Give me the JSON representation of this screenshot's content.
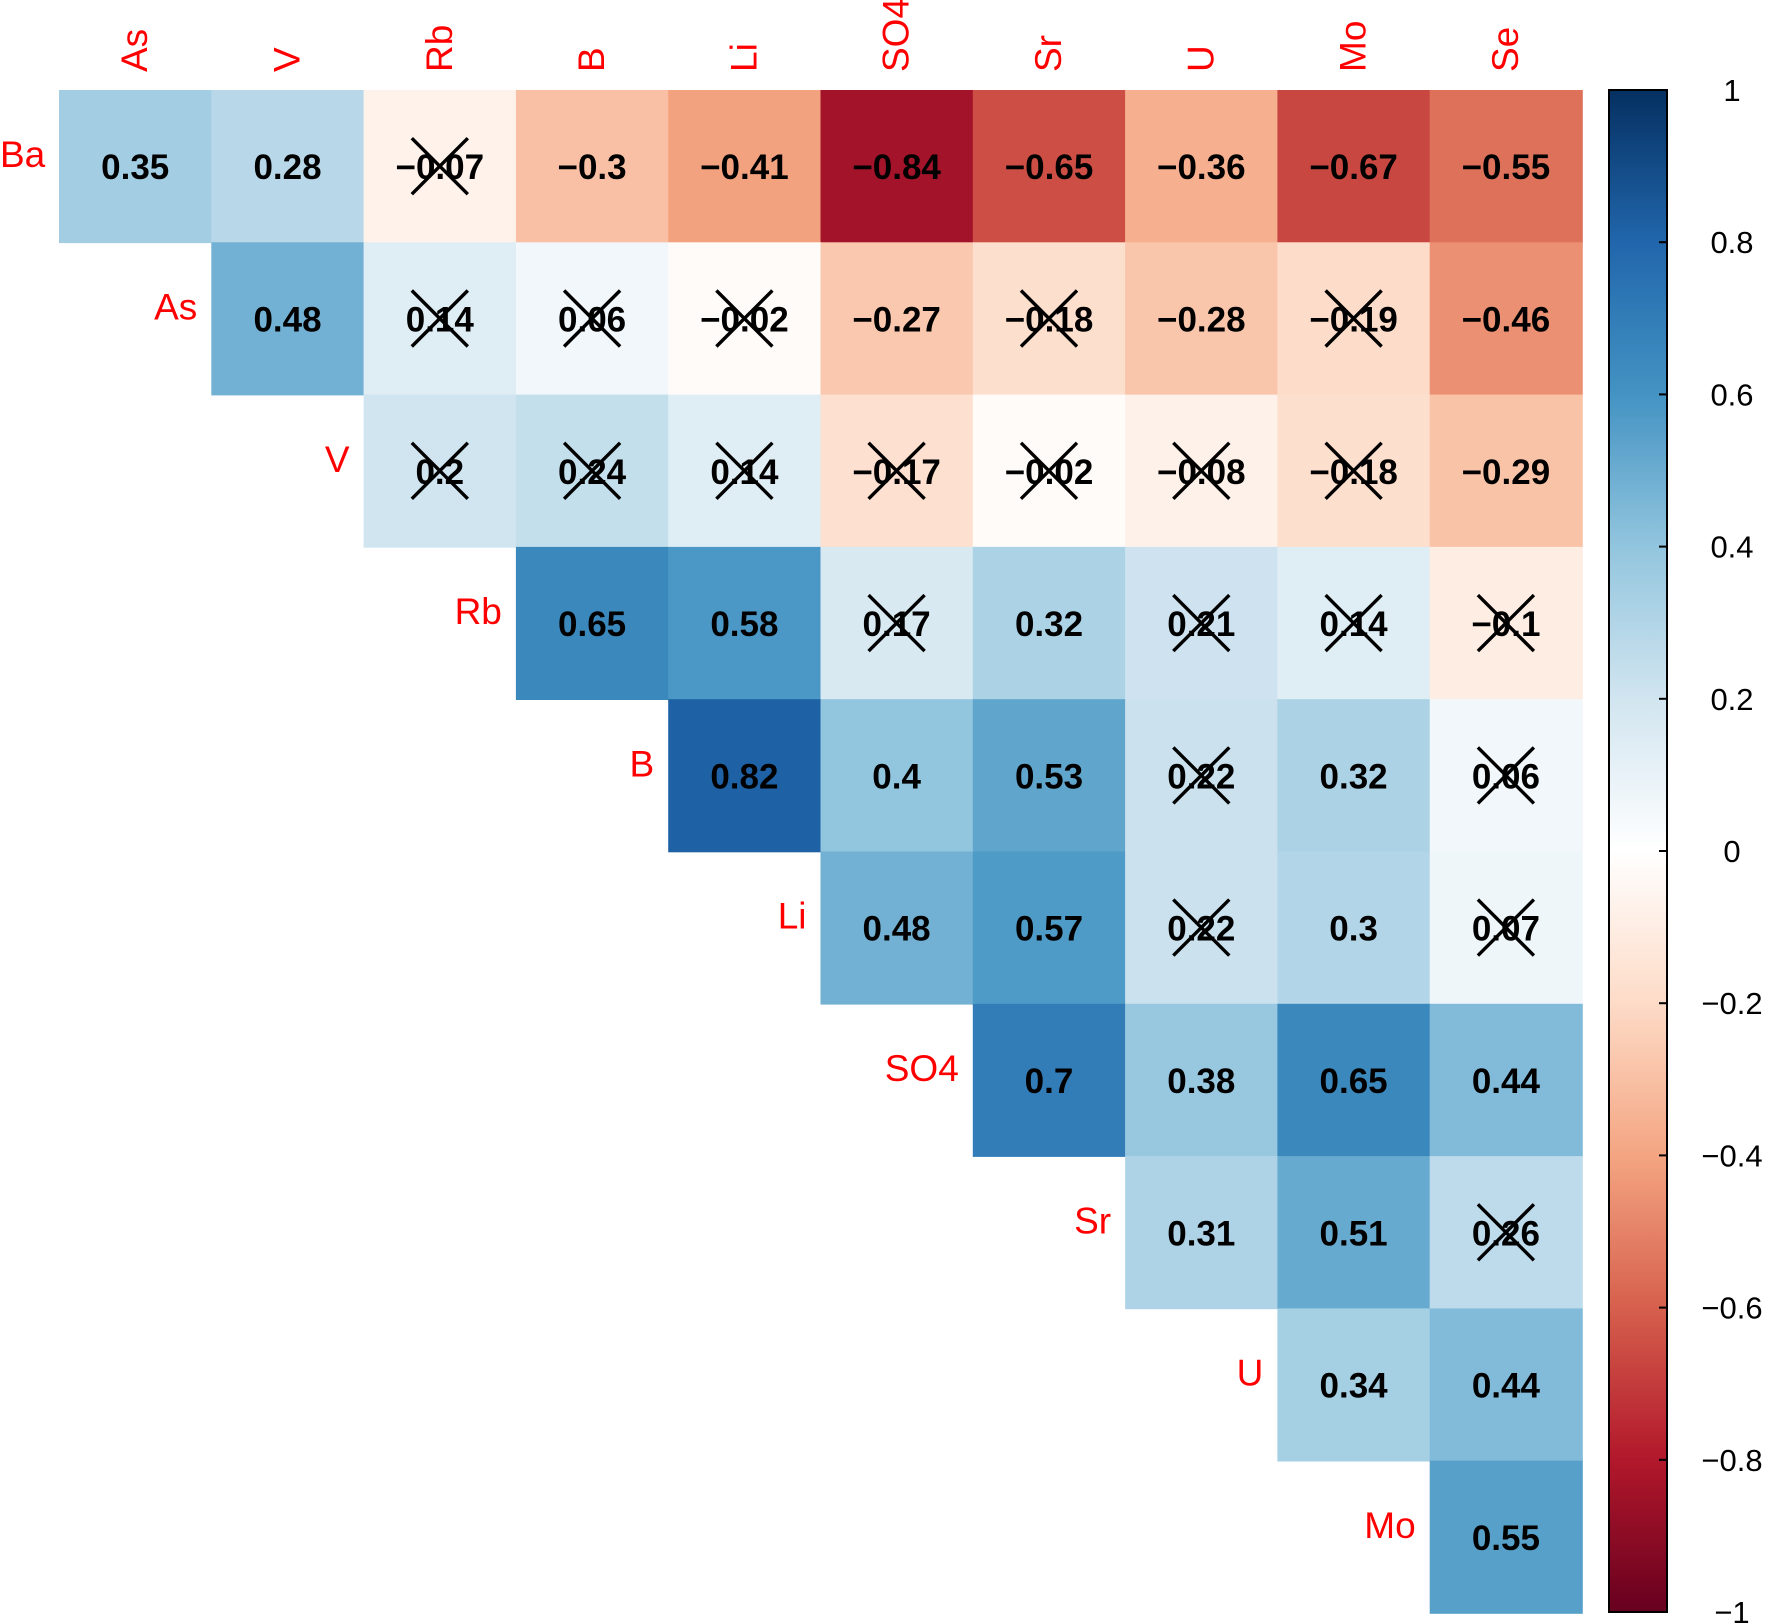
{
  "chart_data": {
    "type": "heatmap",
    "subtype": "correlation-matrix-upper-triangle",
    "row_labels": [
      "Ba",
      "As",
      "V",
      "Rb",
      "B",
      "Li",
      "SO4",
      "Sr",
      "U",
      "Mo"
    ],
    "col_labels": [
      "As",
      "V",
      "Rb",
      "B",
      "Li",
      "SO4",
      "Sr",
      "U",
      "Mo",
      "Se"
    ],
    "cells": [
      [
        {
          "label": "0.35",
          "value": 0.35,
          "crossed": false
        },
        {
          "label": "0.28",
          "value": 0.28,
          "crossed": false
        },
        {
          "label": "−0.07",
          "value": -0.07,
          "crossed": true
        },
        {
          "label": "−0.3",
          "value": -0.3,
          "crossed": false
        },
        {
          "label": "−0.41",
          "value": -0.41,
          "crossed": false
        },
        {
          "label": "−0.84",
          "value": -0.84,
          "crossed": false
        },
        {
          "label": "−0.65",
          "value": -0.65,
          "crossed": false
        },
        {
          "label": "−0.36",
          "value": -0.36,
          "crossed": false
        },
        {
          "label": "−0.67",
          "value": -0.67,
          "crossed": false
        },
        {
          "label": "−0.55",
          "value": -0.55,
          "crossed": false
        }
      ],
      [
        null,
        {
          "label": "0.48",
          "value": 0.48,
          "crossed": false
        },
        {
          "label": "0.14",
          "value": 0.14,
          "crossed": true
        },
        {
          "label": "0.06",
          "value": 0.06,
          "crossed": true
        },
        {
          "label": "−0.02",
          "value": -0.02,
          "crossed": true
        },
        {
          "label": "−0.27",
          "value": -0.27,
          "crossed": false
        },
        {
          "label": "−0.18",
          "value": -0.18,
          "crossed": true
        },
        {
          "label": "−0.28",
          "value": -0.28,
          "crossed": false
        },
        {
          "label": "−0.19",
          "value": -0.19,
          "crossed": true
        },
        {
          "label": "−0.46",
          "value": -0.46,
          "crossed": false
        }
      ],
      [
        null,
        null,
        {
          "label": "0.2",
          "value": 0.2,
          "crossed": true
        },
        {
          "label": "0.24",
          "value": 0.24,
          "crossed": true
        },
        {
          "label": "0.14",
          "value": 0.14,
          "crossed": true
        },
        {
          "label": "−0.17",
          "value": -0.17,
          "crossed": true
        },
        {
          "label": "−0.02",
          "value": -0.02,
          "crossed": true
        },
        {
          "label": "−0.08",
          "value": -0.08,
          "crossed": true
        },
        {
          "label": "−0.18",
          "value": -0.18,
          "crossed": true
        },
        {
          "label": "−0.29",
          "value": -0.29,
          "crossed": false
        }
      ],
      [
        null,
        null,
        null,
        {
          "label": "0.65",
          "value": 0.65,
          "crossed": false
        },
        {
          "label": "0.58",
          "value": 0.58,
          "crossed": false
        },
        {
          "label": "0.17",
          "value": 0.17,
          "crossed": true
        },
        {
          "label": "0.32",
          "value": 0.32,
          "crossed": false
        },
        {
          "label": "0.21",
          "value": 0.21,
          "crossed": true
        },
        {
          "label": "0.14",
          "value": 0.14,
          "crossed": true
        },
        {
          "label": "−0.1",
          "value": -0.1,
          "crossed": true
        }
      ],
      [
        null,
        null,
        null,
        null,
        {
          "label": "0.82",
          "value": 0.82,
          "crossed": false
        },
        {
          "label": "0.4",
          "value": 0.4,
          "crossed": false
        },
        {
          "label": "0.53",
          "value": 0.53,
          "crossed": false
        },
        {
          "label": "0.22",
          "value": 0.22,
          "crossed": true
        },
        {
          "label": "0.32",
          "value": 0.32,
          "crossed": false
        },
        {
          "label": "0.06",
          "value": 0.06,
          "crossed": true
        }
      ],
      [
        null,
        null,
        null,
        null,
        null,
        {
          "label": "0.48",
          "value": 0.48,
          "crossed": false
        },
        {
          "label": "0.57",
          "value": 0.57,
          "crossed": false
        },
        {
          "label": "0.22",
          "value": 0.22,
          "crossed": true
        },
        {
          "label": "0.3",
          "value": 0.3,
          "crossed": false
        },
        {
          "label": "0.07",
          "value": 0.07,
          "crossed": true
        }
      ],
      [
        null,
        null,
        null,
        null,
        null,
        null,
        {
          "label": "0.7",
          "value": 0.7,
          "crossed": false
        },
        {
          "label": "0.38",
          "value": 0.38,
          "crossed": false
        },
        {
          "label": "0.65",
          "value": 0.65,
          "crossed": false
        },
        {
          "label": "0.44",
          "value": 0.44,
          "crossed": false
        }
      ],
      [
        null,
        null,
        null,
        null,
        null,
        null,
        null,
        {
          "label": "0.31",
          "value": 0.31,
          "crossed": false
        },
        {
          "label": "0.51",
          "value": 0.51,
          "crossed": false
        },
        {
          "label": "0.26",
          "value": 0.26,
          "crossed": true
        }
      ],
      [
        null,
        null,
        null,
        null,
        null,
        null,
        null,
        null,
        {
          "label": "0.34",
          "value": 0.34,
          "crossed": false
        },
        {
          "label": "0.44",
          "value": 0.44,
          "crossed": false
        }
      ],
      [
        null,
        null,
        null,
        null,
        null,
        null,
        null,
        null,
        null,
        {
          "label": "0.55",
          "value": 0.55,
          "crossed": false
        }
      ]
    ],
    "colorbar": {
      "range": [
        -1,
        1
      ],
      "ticks": [
        1,
        0.8,
        0.6,
        0.4,
        0.2,
        0,
        -0.2,
        -0.4,
        -0.6,
        -0.8,
        -1
      ],
      "tick_labels": [
        "1",
        "0.8",
        "0.6",
        "0.4",
        "0.2",
        "0",
        "−0.2",
        "−0.4",
        "−0.6",
        "−0.8",
        "−1"
      ],
      "placement": "right"
    },
    "colors": {
      "negative_end": "#67001f",
      "positive_end": "#053061",
      "label_color": "#ff0000",
      "value_color": "#000000",
      "palette_stops": [
        "#67001f",
        "#b2182b",
        "#d6604d",
        "#f4a582",
        "#fddbc7",
        "#ffffff",
        "#d1e5f0",
        "#92c5de",
        "#4393c3",
        "#2166ac",
        "#053061"
      ]
    },
    "title": "",
    "xlabel": "",
    "ylabel": ""
  }
}
